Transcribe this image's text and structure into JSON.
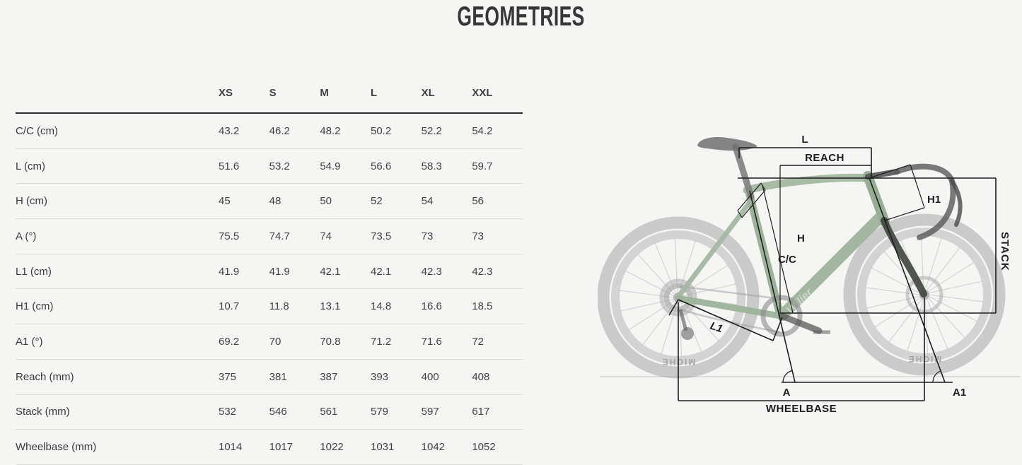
{
  "title": "GEOMETRIES",
  "table": {
    "size_headers": [
      "XS",
      "S",
      "M",
      "L",
      "XL",
      "XXL"
    ],
    "rows": [
      {
        "label": "C/C (cm)",
        "values": [
          "43.2",
          "46.2",
          "48.2",
          "50.2",
          "52.2",
          "54.2"
        ]
      },
      {
        "label": "L (cm)",
        "values": [
          "51.6",
          "53.2",
          "54.9",
          "56.6",
          "58.3",
          "59.7"
        ]
      },
      {
        "label": "H (cm)",
        "values": [
          "45",
          "48",
          "50",
          "52",
          "54",
          "56"
        ]
      },
      {
        "label": "A (°)",
        "values": [
          "75.5",
          "74.7",
          "74",
          "73.5",
          "73",
          "73"
        ]
      },
      {
        "label": "L1 (cm)",
        "values": [
          "41.9",
          "41.9",
          "42.1",
          "42.1",
          "42.3",
          "42.3"
        ]
      },
      {
        "label": "H1 (cm)",
        "values": [
          "10.7",
          "11.8",
          "13.1",
          "14.8",
          "16.6",
          "18.5"
        ]
      },
      {
        "label": "A1 (°)",
        "values": [
          "69.2",
          "70",
          "70.8",
          "71.2",
          "71.6",
          "72"
        ]
      },
      {
        "label": "Reach (mm)",
        "values": [
          "375",
          "381",
          "387",
          "393",
          "400",
          "408"
        ]
      },
      {
        "label": "Stack (mm)",
        "values": [
          "532",
          "546",
          "561",
          "579",
          "597",
          "617"
        ]
      },
      {
        "label": "Wheelbase (mm)",
        "values": [
          "1014",
          "1017",
          "1022",
          "1031",
          "1042",
          "1052"
        ]
      }
    ]
  },
  "diagram": {
    "labels": {
      "l": "L",
      "reach": "REACH",
      "h1": "H1",
      "stack": "STACK",
      "h": "H",
      "cc": "C/C",
      "a": "A",
      "a1": "A1",
      "l1": "L1",
      "wheelbase": "WHEELBASE"
    },
    "wheel_brand": "MICHE",
    "frame_brand": "Wilier",
    "colors": {
      "background": "#f5f5f4",
      "frame_green": "#9cb29a",
      "annotation": "#1d1d1d",
      "text": "#3d3d3d"
    }
  }
}
